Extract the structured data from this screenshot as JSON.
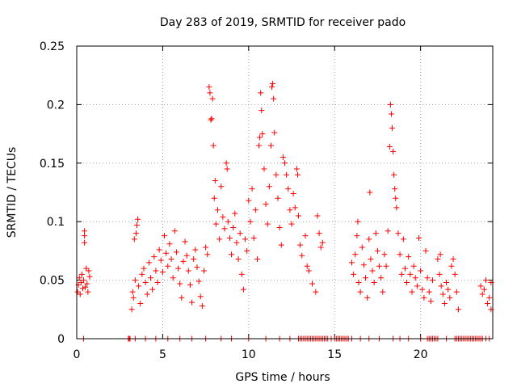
{
  "chart_data": {
    "type": "scatter",
    "title": "Day 283 of 2019, SRMTID for receiver pado",
    "xlabel": "GPS time / hours",
    "ylabel": "SRMTID / TECUs",
    "xlim": [
      0,
      24.2
    ],
    "ylim": [
      0,
      0.25
    ],
    "grid": true,
    "marker": "+",
    "color": "#ff0000",
    "xticks": [
      0,
      5,
      10,
      15,
      20
    ],
    "xtick_labels": [
      "0",
      "5",
      "10",
      "15",
      "20"
    ],
    "yticks": [
      0,
      0.05,
      0.1,
      0.15,
      0.2,
      0.25
    ],
    "ytick_labels": [
      "0",
      "0.05",
      "0.1",
      "0.15",
      "0.2",
      "0.25"
    ],
    "series": [
      {
        "name": "SRMTID",
        "points": [
          [
            0.05,
            0.04
          ],
          [
            0.1,
            0.046
          ],
          [
            0.15,
            0.052
          ],
          [
            0.2,
            0.038
          ],
          [
            0.25,
            0.048
          ],
          [
            0.3,
            0.055
          ],
          [
            0.35,
            0.043
          ],
          [
            0.4,
            0.05
          ],
          [
            0.45,
            0.088
          ],
          [
            0.45,
            0.092
          ],
          [
            0.45,
            0.082
          ],
          [
            0.5,
            0.044
          ],
          [
            0.55,
            0.06
          ],
          [
            0.6,
            0.047
          ],
          [
            0.65,
            0.04
          ],
          [
            0.7,
            0.058
          ],
          [
            0.75,
            0.053
          ],
          [
            3.2,
            0.025
          ],
          [
            3.25,
            0.04
          ],
          [
            3.3,
            0.035
          ],
          [
            3.35,
            0.085
          ],
          [
            3.4,
            0.05
          ],
          [
            3.45,
            0.09
          ],
          [
            3.5,
            0.097
          ],
          [
            3.55,
            0.102
          ],
          [
            3.6,
            0.045
          ],
          [
            3.7,
            0.03
          ],
          [
            3.8,
            0.055
          ],
          [
            3.9,
            0.06
          ],
          [
            4.0,
            0.048
          ],
          [
            4.1,
            0.038
          ],
          [
            4.2,
            0.065
          ],
          [
            4.3,
            0.052
          ],
          [
            4.4,
            0.042
          ],
          [
            4.5,
            0.07
          ],
          [
            4.6,
            0.058
          ],
          [
            4.7,
            0.048
          ],
          [
            4.8,
            0.076
          ],
          [
            4.9,
            0.067
          ],
          [
            5.0,
            0.057
          ],
          [
            5.1,
            0.088
          ],
          [
            5.2,
            0.073
          ],
          [
            5.3,
            0.062
          ],
          [
            5.4,
            0.081
          ],
          [
            5.5,
            0.068
          ],
          [
            5.6,
            0.052
          ],
          [
            5.7,
            0.092
          ],
          [
            5.8,
            0.074
          ],
          [
            5.9,
            0.06
          ],
          [
            6.0,
            0.047
          ],
          [
            6.1,
            0.035
          ],
          [
            6.2,
            0.066
          ],
          [
            6.3,
            0.083
          ],
          [
            6.4,
            0.071
          ],
          [
            6.5,
            0.058
          ],
          [
            6.6,
            0.046
          ],
          [
            6.7,
            0.031
          ],
          [
            6.8,
            0.068
          ],
          [
            6.9,
            0.076
          ],
          [
            7.0,
            0.061
          ],
          [
            7.1,
            0.049
          ],
          [
            7.2,
            0.036
          ],
          [
            7.3,
            0.028
          ],
          [
            7.4,
            0.058
          ],
          [
            7.5,
            0.078
          ],
          [
            7.6,
            0.072
          ],
          [
            7.7,
            0.215
          ],
          [
            7.75,
            0.21
          ],
          [
            7.8,
            0.187
          ],
          [
            7.85,
            0.188
          ],
          [
            7.9,
            0.205
          ],
          [
            7.95,
            0.165
          ],
          [
            8.0,
            0.12
          ],
          [
            8.05,
            0.135
          ],
          [
            8.1,
            0.098
          ],
          [
            8.2,
            0.11
          ],
          [
            8.3,
            0.085
          ],
          [
            8.4,
            0.13
          ],
          [
            8.5,
            0.104
          ],
          [
            8.6,
            0.094
          ],
          [
            8.7,
            0.15
          ],
          [
            8.75,
            0.145
          ],
          [
            8.8,
            0.1
          ],
          [
            8.9,
            0.086
          ],
          [
            9.0,
            0.072
          ],
          [
            9.1,
            0.095
          ],
          [
            9.2,
            0.107
          ],
          [
            9.3,
            0.082
          ],
          [
            9.4,
            0.068
          ],
          [
            9.5,
            0.09
          ],
          [
            9.6,
            0.055
          ],
          [
            9.7,
            0.042
          ],
          [
            9.8,
            0.085
          ],
          [
            9.9,
            0.075
          ],
          [
            10.0,
            0.118
          ],
          [
            10.1,
            0.1
          ],
          [
            10.2,
            0.128
          ],
          [
            10.3,
            0.086
          ],
          [
            10.4,
            0.11
          ],
          [
            10.5,
            0.068
          ],
          [
            10.6,
            0.165
          ],
          [
            10.65,
            0.172
          ],
          [
            10.7,
            0.21
          ],
          [
            10.75,
            0.195
          ],
          [
            10.8,
            0.175
          ],
          [
            10.9,
            0.145
          ],
          [
            11.0,
            0.115
          ],
          [
            11.1,
            0.098
          ],
          [
            11.2,
            0.13
          ],
          [
            11.3,
            0.165
          ],
          [
            11.35,
            0.215
          ],
          [
            11.4,
            0.218
          ],
          [
            11.45,
            0.205
          ],
          [
            11.5,
            0.176
          ],
          [
            11.6,
            0.14
          ],
          [
            11.7,
            0.12
          ],
          [
            11.8,
            0.095
          ],
          [
            11.9,
            0.08
          ],
          [
            12.0,
            0.155
          ],
          [
            12.1,
            0.15
          ],
          [
            12.2,
            0.14
          ],
          [
            12.3,
            0.128
          ],
          [
            12.4,
            0.11
          ],
          [
            12.5,
            0.098
          ],
          [
            12.6,
            0.124
          ],
          [
            12.7,
            0.112
          ],
          [
            12.8,
            0.145
          ],
          [
            12.85,
            0.14
          ],
          [
            12.9,
            0.105
          ],
          [
            13.0,
            0.08
          ],
          [
            13.1,
            0.071
          ],
          [
            13.3,
            0.088
          ],
          [
            13.4,
            0.062
          ],
          [
            13.5,
            0.058
          ],
          [
            13.7,
            0.047
          ],
          [
            13.9,
            0.04
          ],
          [
            14.0,
            0.105
          ],
          [
            14.1,
            0.09
          ],
          [
            14.2,
            0.078
          ],
          [
            14.3,
            0.082
          ],
          [
            16.0,
            0.065
          ],
          [
            16.1,
            0.055
          ],
          [
            16.2,
            0.072
          ],
          [
            16.3,
            0.088
          ],
          [
            16.35,
            0.1
          ],
          [
            16.4,
            0.048
          ],
          [
            16.5,
            0.04
          ],
          [
            16.6,
            0.078
          ],
          [
            16.7,
            0.063
          ],
          [
            16.8,
            0.052
          ],
          [
            16.9,
            0.035
          ],
          [
            17.0,
            0.085
          ],
          [
            17.05,
            0.125
          ],
          [
            17.1,
            0.068
          ],
          [
            17.2,
            0.058
          ],
          [
            17.3,
            0.048
          ],
          [
            17.4,
            0.09
          ],
          [
            17.5,
            0.075
          ],
          [
            17.6,
            0.062
          ],
          [
            17.7,
            0.052
          ],
          [
            17.8,
            0.04
          ],
          [
            17.9,
            0.072
          ],
          [
            18.0,
            0.062
          ],
          [
            18.1,
            0.092
          ],
          [
            18.2,
            0.164
          ],
          [
            18.25,
            0.2
          ],
          [
            18.3,
            0.192
          ],
          [
            18.35,
            0.18
          ],
          [
            18.4,
            0.16
          ],
          [
            18.45,
            0.14
          ],
          [
            18.5,
            0.128
          ],
          [
            18.55,
            0.12
          ],
          [
            18.6,
            0.112
          ],
          [
            18.7,
            0.09
          ],
          [
            18.8,
            0.072
          ],
          [
            18.9,
            0.055
          ],
          [
            19.0,
            0.085
          ],
          [
            19.1,
            0.06
          ],
          [
            19.2,
            0.048
          ],
          [
            19.3,
            0.07
          ],
          [
            19.4,
            0.055
          ],
          [
            19.5,
            0.04
          ],
          [
            19.6,
            0.062
          ],
          [
            19.7,
            0.052
          ],
          [
            19.8,
            0.045
          ],
          [
            19.9,
            0.086
          ],
          [
            20.0,
            0.058
          ],
          [
            20.1,
            0.042
          ],
          [
            20.2,
            0.035
          ],
          [
            20.3,
            0.075
          ],
          [
            20.4,
            0.052
          ],
          [
            20.5,
            0.04
          ],
          [
            20.6,
            0.032
          ],
          [
            20.7,
            0.05
          ],
          [
            21.0,
            0.068
          ],
          [
            21.1,
            0.055
          ],
          [
            21.15,
            0.072
          ],
          [
            21.2,
            0.045
          ],
          [
            21.3,
            0.038
          ],
          [
            21.4,
            0.03
          ],
          [
            21.5,
            0.048
          ],
          [
            21.6,
            0.042
          ],
          [
            21.7,
            0.035
          ],
          [
            21.8,
            0.062
          ],
          [
            21.9,
            0.068
          ],
          [
            22.0,
            0.055
          ],
          [
            22.1,
            0.04
          ],
          [
            22.2,
            0.025
          ],
          [
            23.5,
            0.045
          ],
          [
            23.6,
            0.038
          ],
          [
            23.7,
            0.042
          ],
          [
            23.8,
            0.05
          ],
          [
            23.9,
            0.03
          ],
          [
            24.0,
            0.035
          ],
          [
            24.1,
            0.048
          ],
          [
            24.1,
            0.025
          ]
        ],
        "zero_points": [
          0.4,
          3.0,
          3.05,
          3.1,
          3.4,
          4.0,
          4.6,
          5.3,
          6.0,
          6.7,
          7.5,
          8.4,
          9.0,
          10.0,
          11.0,
          11.8,
          12.4,
          12.9,
          13.0,
          13.1,
          13.2,
          13.3,
          13.4,
          13.5,
          13.6,
          13.7,
          13.8,
          13.9,
          14.0,
          14.1,
          14.2,
          14.3,
          14.4,
          14.5,
          14.6,
          14.8,
          15.0,
          15.1,
          15.2,
          15.3,
          15.4,
          15.5,
          15.6,
          15.7,
          15.8,
          16.0,
          16.5,
          17.0,
          17.6,
          18.4,
          18.8,
          19.3,
          20.0,
          20.4,
          20.5,
          20.6,
          20.7,
          20.8,
          20.9,
          21.0,
          21.5,
          22.0,
          22.1,
          22.2,
          22.3,
          22.4,
          22.5,
          22.6,
          22.7,
          22.8,
          22.9,
          23.0,
          23.1,
          23.2,
          23.3,
          23.4,
          23.5,
          23.6,
          23.8,
          24.0
        ]
      }
    ]
  }
}
